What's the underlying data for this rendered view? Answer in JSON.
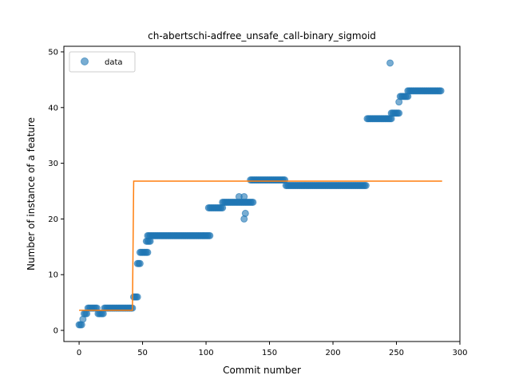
{
  "chart_data": {
    "type": "scatter",
    "title": "ch-abertschi-adfree_unsafe_call-binary_sigmoid",
    "xlabel": "Commit number",
    "ylabel": "Number of instance of a feature",
    "xlim": [
      -12,
      300
    ],
    "ylim": [
      -2,
      51
    ],
    "xticks": [
      0,
      50,
      100,
      150,
      200,
      250,
      300
    ],
    "yticks": [
      0,
      10,
      20,
      30,
      40,
      50
    ],
    "grid": false,
    "legend": {
      "placement": "top-left",
      "entries": [
        "data"
      ]
    },
    "colors": {
      "data": "#1f77b4",
      "fit": "#ff7f0e"
    },
    "series": [
      {
        "name": "data",
        "kind": "scatter",
        "segments": [
          {
            "x_start": 0,
            "x_end": 2,
            "y": 1
          },
          {
            "x_start": 3,
            "x_end": 3,
            "y": 2
          },
          {
            "x_start": 4,
            "x_end": 6,
            "y": 3
          },
          {
            "x_start": 7,
            "x_end": 14,
            "y": 4
          },
          {
            "x_start": 15,
            "x_end": 19,
            "y": 3
          },
          {
            "x_start": 20,
            "x_end": 42,
            "y": 4
          },
          {
            "x_start": 43,
            "x_end": 46,
            "y": 6
          },
          {
            "x_start": 46,
            "x_end": 48,
            "y": 12
          },
          {
            "x_start": 48,
            "x_end": 54,
            "y": 14
          },
          {
            "x_start": 53,
            "x_end": 56,
            "y": 16
          },
          {
            "x_start": 54,
            "x_end": 103,
            "y": 17
          },
          {
            "x_start": 102,
            "x_end": 113,
            "y": 22
          },
          {
            "x_start": 113,
            "x_end": 137,
            "y": 23
          },
          {
            "x_start": 126,
            "x_end": 126,
            "y": 24
          },
          {
            "x_start": 130,
            "x_end": 130,
            "y": 24
          },
          {
            "x_start": 130,
            "x_end": 130,
            "y": 20
          },
          {
            "x_start": 131,
            "x_end": 131,
            "y": 21
          },
          {
            "x_start": 135,
            "x_end": 162,
            "y": 27
          },
          {
            "x_start": 163,
            "x_end": 226,
            "y": 26
          },
          {
            "x_start": 227,
            "x_end": 246,
            "y": 38
          },
          {
            "x_start": 246,
            "x_end": 252,
            "y": 39
          },
          {
            "x_start": 252,
            "x_end": 252,
            "y": 41
          },
          {
            "x_start": 253,
            "x_end": 259,
            "y": 42
          },
          {
            "x_start": 259,
            "x_end": 285,
            "y": 43
          },
          {
            "x_start": 245,
            "x_end": 245,
            "y": 48
          }
        ]
      },
      {
        "kind": "line",
        "x": [
          0,
          42,
          43,
          286
        ],
        "y": [
          3.6,
          3.6,
          26.8,
          26.8
        ]
      }
    ]
  }
}
